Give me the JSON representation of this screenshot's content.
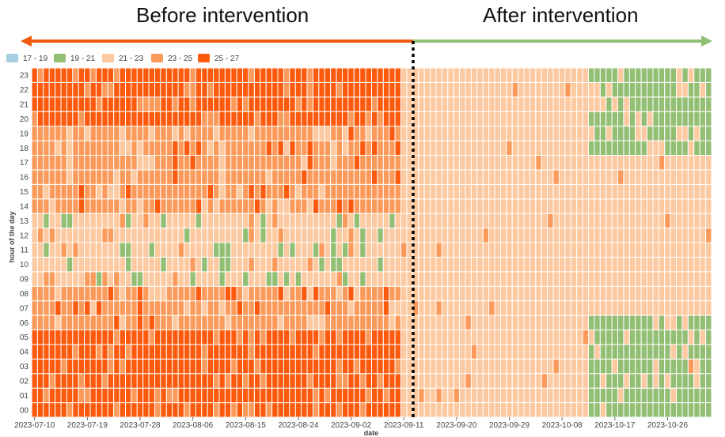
{
  "headings": {
    "before": "Before intervention",
    "after": "After intervention"
  },
  "colors": {
    "before_arrow": "#f4590f",
    "after_arrow": "#8fbf72",
    "divider": "#000000",
    "cell_border": "#ffffff"
  },
  "chart_data": {
    "type": "heatmap",
    "xlabel": "date",
    "ylabel": "hour of the day",
    "x_start": "2023-07-10",
    "x_end": "2023-11-02",
    "x_ticks": [
      "2023-07-10",
      "2023-07-19",
      "2023-07-28",
      "2023-08-06",
      "2023-08-15",
      "2023-08-24",
      "2023-09-02",
      "2023-09-11",
      "2023-09-20",
      "2023-09-29",
      "2023-10-08",
      "2023-10-17",
      "2023-10-26"
    ],
    "y_ticks": [
      "00",
      "01",
      "02",
      "03",
      "04",
      "05",
      "06",
      "07",
      "08",
      "09",
      "10",
      "11",
      "12",
      "13",
      "14",
      "15",
      "16",
      "17",
      "18",
      "19",
      "20",
      "21",
      "22",
      "23"
    ],
    "intervention_date": "2023-09-11",
    "legend_position": "top-left",
    "bins": [
      {
        "label": "17 - 19",
        "color": "#a6cee3"
      },
      {
        "label": "19 - 21",
        "color": "#93bf75"
      },
      {
        "label": "21 - 23",
        "color": "#fdc9a0"
      },
      {
        "label": "23 - 25",
        "color": "#fb9a5a"
      },
      {
        "label": "25 - 27",
        "color": "#fd5a0e"
      }
    ],
    "pattern_by_hour": {
      "before_intervention": {
        "00": "25 - 27",
        "01": "25 - 27",
        "02": "25 - 27",
        "03": "25 - 27",
        "04": "25 - 27",
        "05": "25 - 27",
        "06": "23 - 25",
        "07": "23 - 25",
        "08": "23 - 25",
        "09": "21 - 23",
        "10": "21 - 23",
        "11": "21 - 23",
        "12": "21 - 23",
        "13": "21 - 23",
        "14": "23 - 25",
        "15": "23 - 25",
        "16": "23 - 25",
        "17": "23 - 25",
        "18": "23 - 25",
        "19": "23 - 25",
        "20": "25 - 27",
        "21": "25 - 27",
        "22": "25 - 27",
        "23": "25 - 27"
      },
      "after_intervention": {
        "00": "21 - 23",
        "01": "21 - 23",
        "02": "21 - 23",
        "03": "21 - 23",
        "04": "21 - 23",
        "05": "21 - 23",
        "06": "21 - 23",
        "07": "21 - 23",
        "08": "21 - 23",
        "09": "21 - 23",
        "10": "21 - 23",
        "11": "21 - 23",
        "12": "21 - 23",
        "13": "21 - 23",
        "14": "21 - 23",
        "15": "21 - 23",
        "16": "21 - 23",
        "17": "21 - 23",
        "18": "21 - 23",
        "19": "21 - 23",
        "20": "21 - 23",
        "21": "21 - 23",
        "22": "21 - 23",
        "23": "21 - 23"
      },
      "after_intervention_late_october": {
        "00": "19 - 21",
        "01": "19 - 21",
        "02": "19 - 21",
        "03": "19 - 21",
        "04": "19 - 21",
        "05": "19 - 21",
        "06": "19 - 21",
        "18": "19 - 21",
        "19": "19 - 21",
        "20": "19 - 21",
        "21": "19 - 21",
        "22": "19 - 21",
        "23": "19 - 21"
      }
    }
  }
}
